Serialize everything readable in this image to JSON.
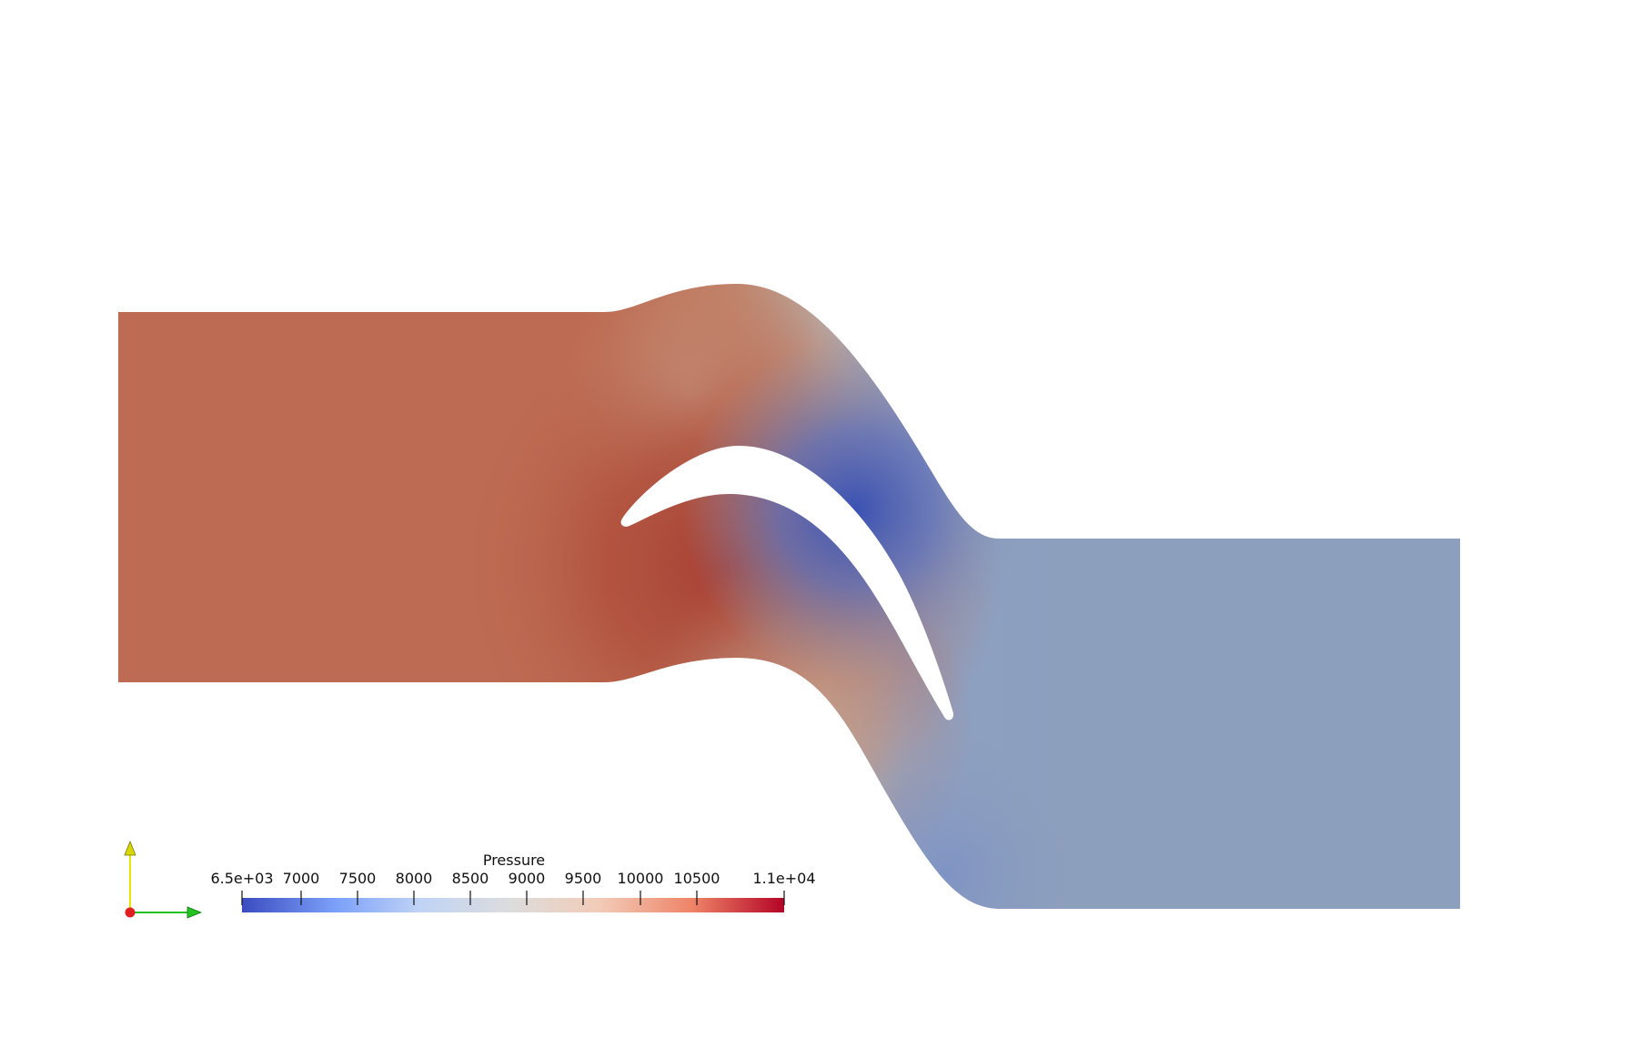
{
  "colorbar": {
    "title": "Pressure",
    "min_label": "6.5e+03",
    "max_label": "1.1e+04",
    "tick_labels": [
      "7000",
      "7500",
      "8000",
      "8500",
      "9000",
      "9500",
      "10000",
      "10500"
    ],
    "colormap": [
      "#3b4cc0",
      "#7b9ff9",
      "#c0d4f5",
      "#dddcdc",
      "#f2cbb7",
      "#ee8468",
      "#b40426"
    ]
  },
  "field_colors": {
    "inlet": "#bd6b52",
    "blade_pressure_side": "#a63f33",
    "suction_low": "#3f58b4",
    "outlet": "#8c9fbc",
    "transition": "#c2a898"
  },
  "orientation_axes": {
    "x_color": "#22c222",
    "y_color": "#e6e600",
    "z_color": "#e02020"
  }
}
